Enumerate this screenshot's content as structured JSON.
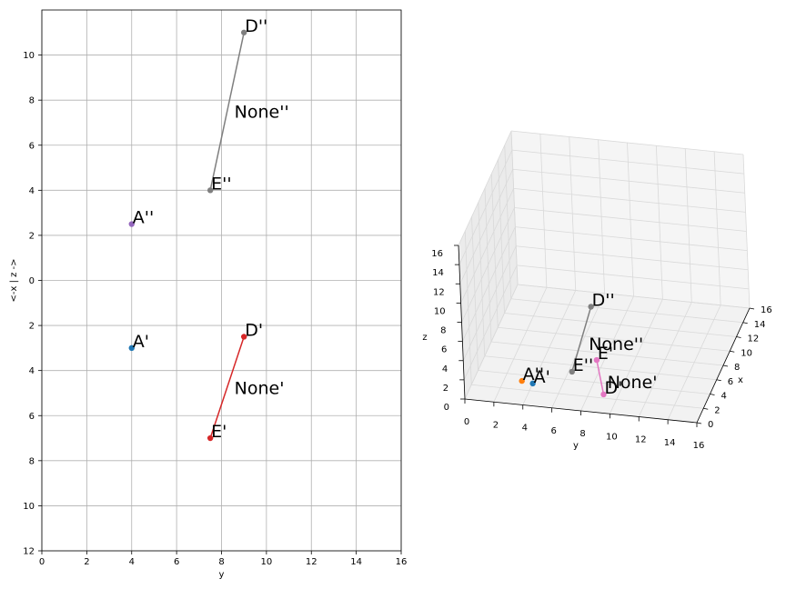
{
  "chart_data": [
    {
      "type": "scatter",
      "view": "2d-projection",
      "xlabel": "y",
      "ylabel": "<-x | z ->",
      "xlim": [
        0,
        16
      ],
      "ylim": [
        -12,
        12
      ],
      "xticks": [
        0,
        2,
        4,
        6,
        8,
        10,
        12,
        14,
        16
      ],
      "yticks": [
        -12,
        -10,
        -8,
        -6,
        -4,
        -2,
        0,
        2,
        4,
        6,
        8,
        10
      ],
      "ytick_labels": [
        "12",
        "10",
        "8",
        "6",
        "4",
        "2",
        "0",
        "2",
        "4",
        "6",
        "8",
        "10"
      ],
      "grid": true,
      "points": [
        {
          "label": "A''",
          "x": 4,
          "y": 2.5,
          "color": "#9467bd"
        },
        {
          "label": "E''",
          "x": 7.5,
          "y": 4,
          "color": "#7f7f7f"
        },
        {
          "label": "D''",
          "x": 9,
          "y": 11,
          "color": "#7f7f7f"
        },
        {
          "label": "A'",
          "x": 4,
          "y": -3,
          "color": "#1f77b4"
        },
        {
          "label": "D'",
          "x": 9,
          "y": -2.5,
          "color": "#d62728"
        },
        {
          "label": "E'",
          "x": 7.5,
          "y": -7,
          "color": "#d62728"
        }
      ],
      "segments": [
        {
          "from": [
            7.5,
            4
          ],
          "to": [
            9,
            11
          ],
          "color": "#7f7f7f",
          "label": "None''"
        },
        {
          "from": [
            9,
            -2.5
          ],
          "to": [
            7.5,
            -7
          ],
          "color": "#d62728",
          "label": "None'"
        }
      ]
    },
    {
      "type": "scatter",
      "view": "3d",
      "xlabel": "x",
      "ylabel": "y",
      "zlabel": "z",
      "xlim": [
        0,
        16
      ],
      "ylim": [
        0,
        16
      ],
      "zlim": [
        0,
        16
      ],
      "xticks": [
        0,
        2,
        4,
        6,
        8,
        10,
        12,
        14,
        16
      ],
      "yticks": [
        0,
        2,
        4,
        6,
        8,
        10,
        12,
        14,
        16
      ],
      "zticks": [
        0,
        2,
        4,
        6,
        8,
        10,
        12,
        14,
        16
      ],
      "points": [
        {
          "label": "A''",
          "x": 0,
          "y": 4,
          "z": 2.5,
          "color": "#ff7f0e"
        },
        {
          "label": "E''",
          "x": 0,
          "y": 7.5,
          "z": 4,
          "color": "#7f7f7f"
        },
        {
          "label": "D''",
          "x": 0,
          "y": 9,
          "z": 11,
          "color": "#7f7f7f"
        },
        {
          "label": "A'",
          "x": 3,
          "y": 4,
          "z": 0,
          "color": "#1f77b4"
        },
        {
          "label": "D'",
          "x": 2.5,
          "y": 9,
          "z": 0,
          "color": "#e377c2"
        },
        {
          "label": "E'",
          "x": 7,
          "y": 7.5,
          "z": 0,
          "color": "#e377c2"
        }
      ],
      "segments": [
        {
          "from": [
            0,
            7.5,
            4
          ],
          "to": [
            0,
            9,
            11
          ],
          "color": "#7f7f7f",
          "label": "None''"
        },
        {
          "from": [
            2.5,
            9,
            0
          ],
          "to": [
            7,
            7.5,
            0
          ],
          "color": "#e377c2",
          "label": "None'"
        }
      ]
    }
  ]
}
